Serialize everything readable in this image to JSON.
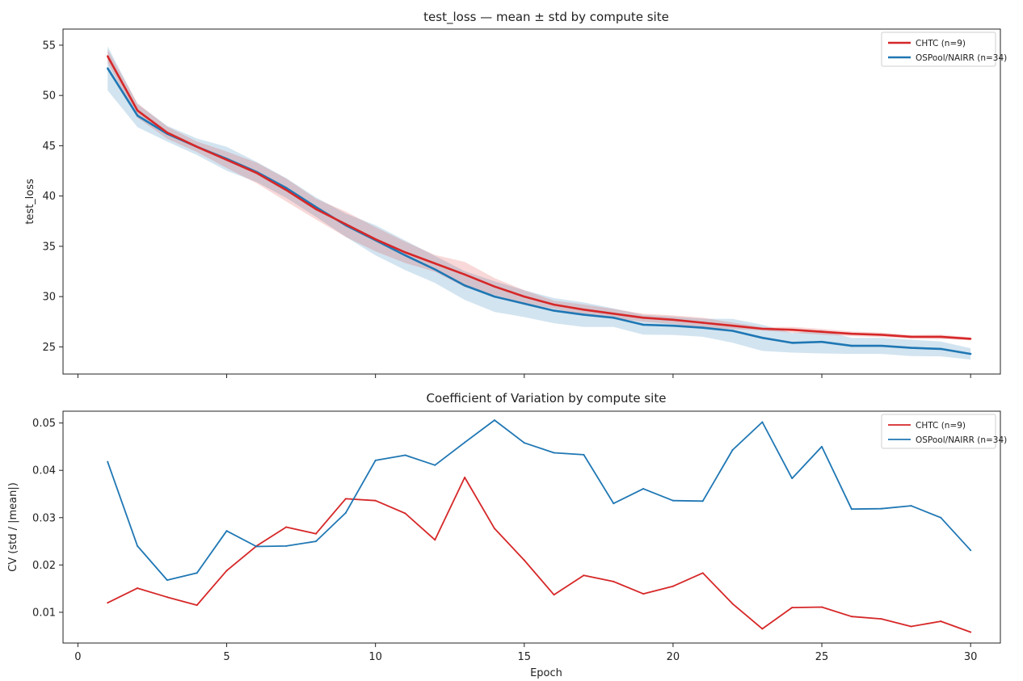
{
  "colors": {
    "chtc": "#d62728",
    "ospool": "#1f77b4"
  },
  "chart_data": [
    {
      "type": "line",
      "title": "test_loss — mean ± std by compute site",
      "xlabel": "",
      "ylabel": "test_loss",
      "xlim": [
        -0.5,
        31
      ],
      "ylim": [
        22.3,
        56.6
      ],
      "xticks": [
        0,
        5,
        10,
        15,
        20,
        25,
        30
      ],
      "yticks": [
        25,
        30,
        35,
        40,
        45,
        50,
        55
      ],
      "show_xtick_labels": false,
      "grid": false,
      "legend": "top-right",
      "x": [
        1,
        2,
        3,
        4,
        5,
        6,
        7,
        8,
        9,
        10,
        11,
        12,
        13,
        14,
        15,
        16,
        17,
        18,
        19,
        20,
        21,
        22,
        23,
        24,
        25,
        26,
        27,
        28,
        29,
        30
      ],
      "series": [
        {
          "name": "CHTC (n=9)",
          "color": "#d62728",
          "mean": [
            53.9,
            48.5,
            46.3,
            44.9,
            43.6,
            42.3,
            40.6,
            38.7,
            37.2,
            35.7,
            34.4,
            33.3,
            32.2,
            31.0,
            30.0,
            29.2,
            28.7,
            28.3,
            27.9,
            27.7,
            27.4,
            27.1,
            26.8,
            26.7,
            26.5,
            26.3,
            26.2,
            26.0,
            26.0,
            25.8
          ],
          "std": [
            0.65,
            0.73,
            0.6,
            0.52,
            0.82,
            1.02,
            1.14,
            1.03,
            1.26,
            1.2,
            1.06,
            0.84,
            1.24,
            0.84,
            0.64,
            0.4,
            0.51,
            0.47,
            0.39,
            0.43,
            0.5,
            0.32,
            0.17,
            0.29,
            0.29,
            0.24,
            0.23,
            0.18,
            0.21,
            0.15
          ]
        },
        {
          "name": "OSPool/NAIRR (n=34)",
          "color": "#1f77b4",
          "mean": [
            52.7,
            48.0,
            46.2,
            44.9,
            43.7,
            42.4,
            40.8,
            38.9,
            37.1,
            35.6,
            34.1,
            32.7,
            31.1,
            30.0,
            29.3,
            28.6,
            28.2,
            27.9,
            27.2,
            27.1,
            26.9,
            26.6,
            25.9,
            25.4,
            25.5,
            25.1,
            25.1,
            24.9,
            24.8,
            24.3
          ],
          "std": [
            2.2,
            1.15,
            0.78,
            0.82,
            1.19,
            1.01,
            0.98,
            0.97,
            1.15,
            1.5,
            1.47,
            1.34,
            1.43,
            1.52,
            1.34,
            1.25,
            1.22,
            0.92,
            0.98,
            0.91,
            0.9,
            1.18,
            1.3,
            0.97,
            1.15,
            0.8,
            0.8,
            0.81,
            0.74,
            0.56
          ]
        }
      ]
    },
    {
      "type": "line",
      "title": "Coefficient of Variation by compute site",
      "xlabel": "Epoch",
      "ylabel": "CV (std / |mean|)",
      "xlim": [
        -0.5,
        31
      ],
      "ylim": [
        0.0035,
        0.0525
      ],
      "xticks": [
        0,
        5,
        10,
        15,
        20,
        25,
        30
      ],
      "xtick_labels": [
        "0",
        "5",
        "10",
        "15",
        "20",
        "25",
        "30"
      ],
      "yticks": [
        0.01,
        0.02,
        0.03,
        0.04,
        0.05
      ],
      "ytick_labels": [
        "0.01",
        "0.02",
        "0.03",
        "0.04",
        "0.05"
      ],
      "grid": false,
      "legend": "top-right",
      "x": [
        1,
        2,
        3,
        4,
        5,
        6,
        7,
        8,
        9,
        10,
        11,
        12,
        13,
        14,
        15,
        16,
        17,
        18,
        19,
        20,
        21,
        22,
        23,
        24,
        25,
        26,
        27,
        28,
        29,
        30
      ],
      "series": [
        {
          "name": "CHTC (n=9)",
          "color": "#d62728",
          "values": [
            0.012,
            0.0151,
            0.0132,
            0.0115,
            0.0188,
            0.024,
            0.028,
            0.0266,
            0.034,
            0.0336,
            0.0309,
            0.0253,
            0.0385,
            0.0277,
            0.021,
            0.0137,
            0.0178,
            0.0165,
            0.0139,
            0.0155,
            0.0183,
            0.0118,
            0.0065,
            0.011,
            0.0111,
            0.0091,
            0.0086,
            0.007,
            0.0081,
            0.0058
          ]
        },
        {
          "name": "OSPool/NAIRR (n=34)",
          "color": "#1f77b4",
          "values": [
            0.0418,
            0.024,
            0.0168,
            0.0183,
            0.0272,
            0.0239,
            0.024,
            0.025,
            0.031,
            0.0421,
            0.0432,
            0.0411,
            0.0459,
            0.0506,
            0.0458,
            0.0437,
            0.0433,
            0.033,
            0.0361,
            0.0336,
            0.0335,
            0.0443,
            0.0502,
            0.0383,
            0.045,
            0.0318,
            0.0319,
            0.0325,
            0.03,
            0.0231
          ]
        }
      ]
    }
  ]
}
